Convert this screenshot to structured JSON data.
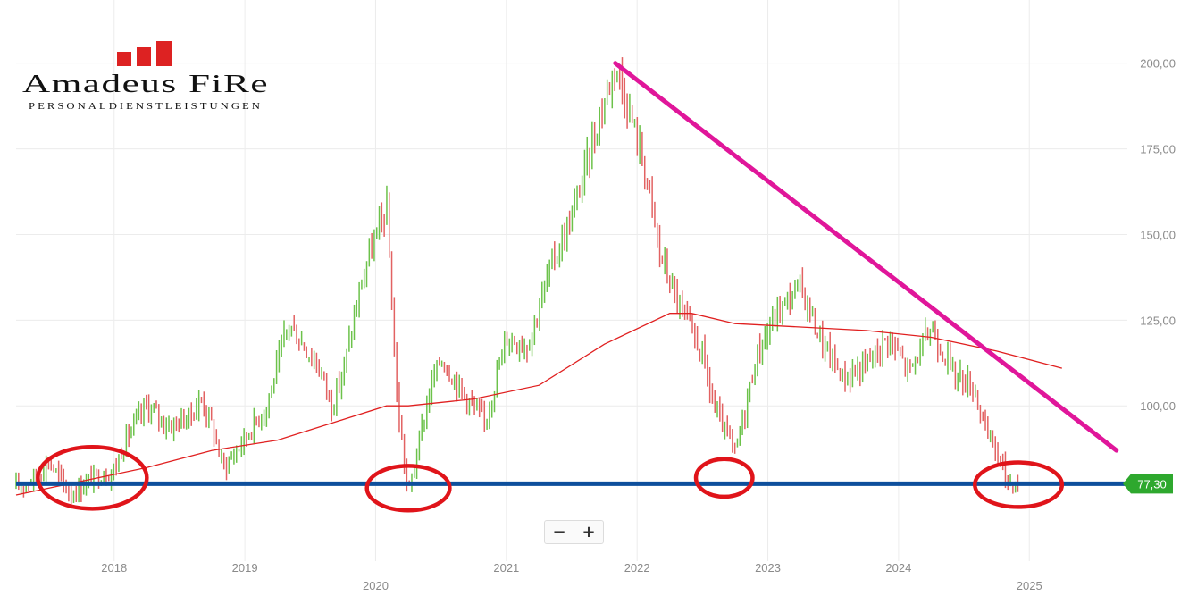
{
  "logo": {
    "name": "Amadeus FiRe",
    "tagline": "PERSONALDIENSTLEISTUNGEN",
    "color": "#dd2222"
  },
  "zoom": {
    "minus_label": "−",
    "plus_label": "+"
  },
  "price_tag": {
    "label": "77,30",
    "value": 77.3,
    "color": "#2ea82e"
  },
  "colors": {
    "up": "#6cc24a",
    "down": "#e26262",
    "ma": "#e02020",
    "support": "#0d4f9c",
    "trend": "#e0169a",
    "circle": "#e0141a"
  },
  "chart_data": {
    "type": "bar",
    "title": "",
    "xlabel": "",
    "ylabel": "",
    "ylim": [
      62,
      208
    ],
    "xlim": [
      "2017-04",
      "2025-10"
    ],
    "y_ticks": [
      {
        "value": 100,
        "label": "100,00"
      },
      {
        "value": 125,
        "label": "125,00"
      },
      {
        "value": 150,
        "label": "150,00"
      },
      {
        "value": 175,
        "label": "175,00"
      },
      {
        "value": 200,
        "label": "200,00"
      }
    ],
    "x_ticks": [
      {
        "date": "2018-01",
        "label": "2018",
        "row": 1
      },
      {
        "date": "2019-01",
        "label": "2019",
        "row": 1
      },
      {
        "date": "2020-01",
        "label": "2020",
        "row": 2
      },
      {
        "date": "2021-01",
        "label": "2021",
        "row": 1
      },
      {
        "date": "2022-01",
        "label": "2022",
        "row": 1
      },
      {
        "date": "2023-01",
        "label": "2023",
        "row": 1
      },
      {
        "date": "2024-01",
        "label": "2024",
        "row": 1
      },
      {
        "date": "2025-01",
        "label": "2025",
        "row": 2
      }
    ],
    "price_series": [
      [
        "2017-04",
        76
      ],
      [
        "2017-06",
        80
      ],
      [
        "2017-07",
        84
      ],
      [
        "2017-09",
        74
      ],
      [
        "2017-11",
        79
      ],
      [
        "2018-01",
        81
      ],
      [
        "2018-02",
        90
      ],
      [
        "2018-04",
        100
      ],
      [
        "2018-06",
        94
      ],
      [
        "2018-08",
        97
      ],
      [
        "2018-09",
        102
      ],
      [
        "2018-10",
        94
      ],
      [
        "2018-11",
        82
      ],
      [
        "2018-12",
        86
      ],
      [
        "2019-03",
        100
      ],
      [
        "2019-05",
        124
      ],
      [
        "2019-07",
        115
      ],
      [
        "2019-08",
        110
      ],
      [
        "2019-09",
        100
      ],
      [
        "2019-10",
        110
      ],
      [
        "2019-12",
        140
      ],
      [
        "2020-02",
        158
      ],
      [
        "2020-03",
        100
      ],
      [
        "2020-04",
        74
      ],
      [
        "2020-06",
        105
      ],
      [
        "2020-07",
        114
      ],
      [
        "2020-09",
        104
      ],
      [
        "2020-11",
        95
      ],
      [
        "2021-01",
        120
      ],
      [
        "2021-03",
        118
      ],
      [
        "2021-05",
        140
      ],
      [
        "2021-07",
        155
      ],
      [
        "2021-09",
        178
      ],
      [
        "2021-11",
        200
      ],
      [
        "2022-01",
        178
      ],
      [
        "2022-02",
        165
      ],
      [
        "2022-03",
        145
      ],
      [
        "2022-05",
        128
      ],
      [
        "2022-07",
        115
      ],
      [
        "2022-08",
        100
      ],
      [
        "2022-10",
        86
      ],
      [
        "2022-12",
        115
      ],
      [
        "2023-02",
        128
      ],
      [
        "2023-04",
        135
      ],
      [
        "2023-06",
        118
      ],
      [
        "2023-08",
        108
      ],
      [
        "2023-10",
        112
      ],
      [
        "2023-12",
        120
      ],
      [
        "2024-02",
        110
      ],
      [
        "2024-04",
        123
      ],
      [
        "2024-06",
        110
      ],
      [
        "2024-08",
        105
      ],
      [
        "2024-09",
        92
      ],
      [
        "2024-10",
        87
      ],
      [
        "2024-11",
        78
      ],
      [
        "2024-12",
        77.3
      ]
    ],
    "moving_average": [
      [
        "2017-04",
        74
      ],
      [
        "2017-10",
        78
      ],
      [
        "2018-04",
        82
      ],
      [
        "2018-10",
        87
      ],
      [
        "2019-04",
        90
      ],
      [
        "2019-10",
        96
      ],
      [
        "2020-02",
        100
      ],
      [
        "2020-04",
        100
      ],
      [
        "2020-10",
        102
      ],
      [
        "2021-04",
        106
      ],
      [
        "2021-10",
        118
      ],
      [
        "2022-04",
        127
      ],
      [
        "2022-06",
        127
      ],
      [
        "2022-10",
        124
      ],
      [
        "2023-04",
        123
      ],
      [
        "2023-10",
        122
      ],
      [
        "2024-04",
        120
      ],
      [
        "2024-10",
        116
      ],
      [
        "2025-04",
        111
      ]
    ],
    "support_level": 77.3,
    "trendline": {
      "start": [
        "2021-11",
        200
      ],
      "end": [
        "2025-09",
        87
      ]
    },
    "circles": [
      {
        "x": "2017-11",
        "y": 79,
        "rx_months": 5,
        "ry": 9
      },
      {
        "x": "2020-04",
        "y": 76,
        "rx_months": 3.8,
        "ry": 6.5
      },
      {
        "x": "2022-09",
        "y": 79,
        "rx_months": 2.6,
        "ry": 5.5
      },
      {
        "x": "2024-12",
        "y": 77,
        "rx_months": 4,
        "ry": 6.5
      }
    ]
  }
}
